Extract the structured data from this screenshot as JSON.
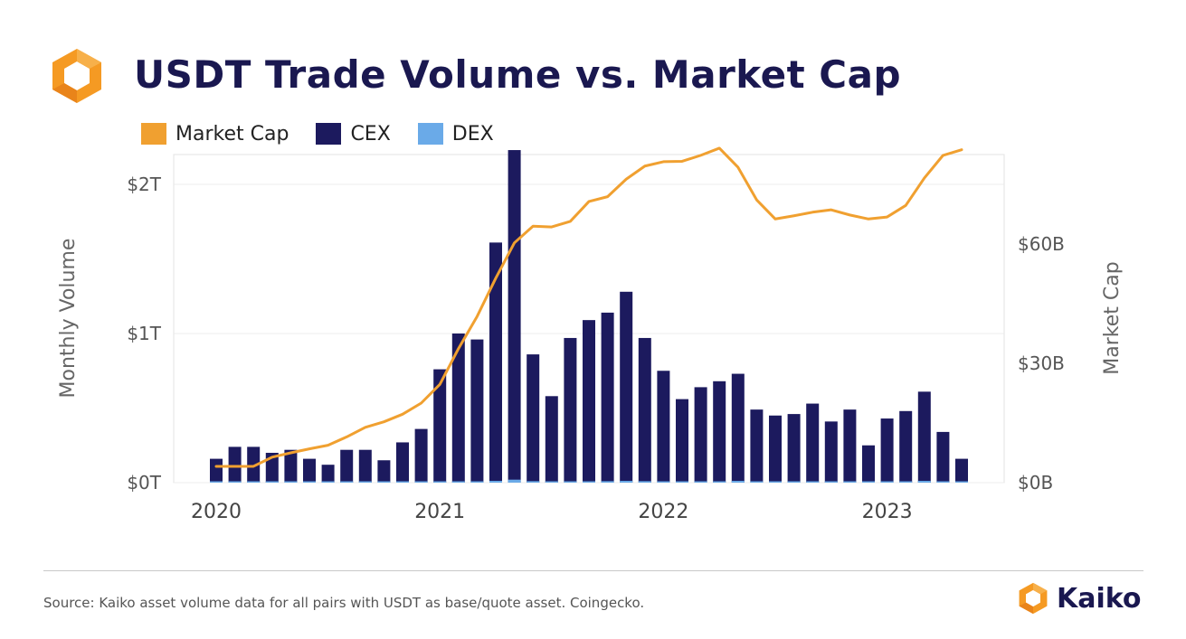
{
  "header": {
    "title": "USDT Trade Volume vs. Market Cap",
    "logo_icon": "kaiko-hexagon-icon"
  },
  "colors": {
    "market_cap": "#f0a030",
    "cex": "#1c1a5e",
    "dex": "#6aaae8",
    "title": "#1a1850",
    "brand_orange": "#f59a23"
  },
  "chart_data": {
    "type": "bar",
    "title": "USDT Trade Volume vs. Market Cap",
    "ylabel": "Monthly Volume",
    "y2label": "Market Cap",
    "ylim": [
      0,
      2.2
    ],
    "y2lim": [
      0,
      82.5
    ],
    "yticks": [
      "$0T",
      "$1T",
      "$2T"
    ],
    "y2ticks": [
      "$0B",
      "$30B",
      "$60B"
    ],
    "xticks": [
      "2020",
      "2021",
      "2022",
      "2023"
    ],
    "legend": [
      "Market Cap",
      "CEX",
      "DEX"
    ],
    "legend_position": "top-left",
    "grid": true,
    "months": [
      "2020-01",
      "2020-02",
      "2020-03",
      "2020-04",
      "2020-05",
      "2020-06",
      "2020-07",
      "2020-08",
      "2020-09",
      "2020-10",
      "2020-11",
      "2020-12",
      "2021-01",
      "2021-02",
      "2021-03",
      "2021-04",
      "2021-05",
      "2021-06",
      "2021-07",
      "2021-08",
      "2021-09",
      "2021-10",
      "2021-11",
      "2021-12",
      "2022-01",
      "2022-02",
      "2022-03",
      "2022-04",
      "2022-05",
      "2022-06",
      "2022-07",
      "2022-08",
      "2022-09",
      "2022-10",
      "2022-11",
      "2022-12",
      "2023-01",
      "2023-02",
      "2023-03",
      "2023-04",
      "2023-05"
    ],
    "series": [
      {
        "name": "CEX",
        "type": "bar",
        "axis": "left",
        "unit": "T",
        "values": [
          0.16,
          0.24,
          0.24,
          0.2,
          0.22,
          0.16,
          0.12,
          0.22,
          0.22,
          0.15,
          0.27,
          0.36,
          0.76,
          1.0,
          0.96,
          1.61,
          2.23,
          0.86,
          0.58,
          0.97,
          1.09,
          1.14,
          1.28,
          0.97,
          0.75,
          0.56,
          0.64,
          0.68,
          0.73,
          0.49,
          0.45,
          0.46,
          0.53,
          0.41,
          0.49,
          0.25,
          0.43,
          0.48,
          0.61,
          0.34,
          0.16
        ]
      },
      {
        "name": "DEX",
        "type": "bar",
        "axis": "left",
        "unit": "T",
        "values": [
          0.002,
          0.002,
          0.002,
          0.002,
          0.002,
          0.002,
          0.003,
          0.004,
          0.005,
          0.004,
          0.004,
          0.005,
          0.006,
          0.008,
          0.008,
          0.012,
          0.02,
          0.01,
          0.008,
          0.008,
          0.009,
          0.01,
          0.012,
          0.01,
          0.008,
          0.006,
          0.007,
          0.007,
          0.012,
          0.006,
          0.005,
          0.005,
          0.005,
          0.005,
          0.006,
          0.005,
          0.006,
          0.007,
          0.012,
          0.006,
          0.004
        ]
      },
      {
        "name": "Market Cap",
        "type": "line",
        "axis": "right",
        "unit": "B",
        "values": [
          4.1,
          4.1,
          4.1,
          6.4,
          7.5,
          8.5,
          9.4,
          11.5,
          13.9,
          15.3,
          17.2,
          20.0,
          24.7,
          33.7,
          41.8,
          51.4,
          60.3,
          64.5,
          64.3,
          65.7,
          70.7,
          71.9,
          76.3,
          79.6,
          80.7,
          80.8,
          82.3,
          84.1,
          79.3,
          71.1,
          66.3,
          67.1,
          68.0,
          68.6,
          67.3,
          66.3,
          66.8,
          69.7,
          76.6,
          82.3,
          83.7
        ]
      }
    ]
  },
  "footer": {
    "source": "Source: Kaiko asset volume data for all pairs with USDT as base/quote asset. Coingecko.",
    "brand_name": "Kaiko",
    "brand_icon": "kaiko-hexagon-icon"
  }
}
